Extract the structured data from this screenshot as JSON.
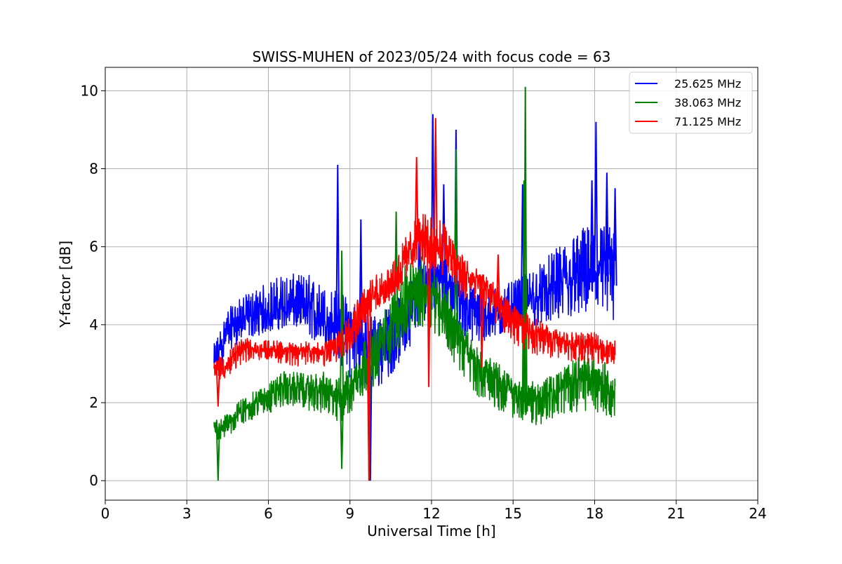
{
  "chart_data": {
    "type": "line",
    "title": "SWISS-MUHEN of 2023/05/24 with focus code = 63",
    "xlabel": "Universal Time [h]",
    "ylabel": "Y-factor [dB]",
    "xlim": [
      0,
      24
    ],
    "ylim": [
      -0.5,
      10.6
    ],
    "xticks": [
      0,
      3,
      6,
      9,
      12,
      15,
      18,
      21,
      24
    ],
    "yticks": [
      0,
      2,
      4,
      6,
      8,
      10
    ],
    "grid": true,
    "legend_position": "top-right",
    "series": [
      {
        "name": "25.625 MHz",
        "color": "#0000ff",
        "x": [
          4.0,
          4.5,
          5.0,
          5.5,
          6.0,
          6.5,
          7.0,
          7.5,
          8.0,
          8.5,
          9.0,
          9.5,
          10.0,
          10.5,
          11.0,
          11.5,
          12.0,
          12.5,
          13.0,
          13.5,
          14.0,
          14.5,
          15.0,
          15.5,
          16.0,
          16.5,
          17.0,
          17.5,
          18.0,
          18.5,
          18.75
        ],
        "y": [
          2.8,
          3.8,
          4.0,
          4.1,
          4.2,
          4.3,
          4.3,
          4.2,
          4.0,
          3.8,
          3.6,
          3.3,
          3.2,
          3.4,
          3.9,
          4.5,
          5.2,
          5.0,
          4.6,
          4.2,
          4.0,
          4.2,
          4.3,
          4.4,
          4.6,
          4.7,
          4.8,
          5.0,
          5.1,
          5.1,
          5.0
        ],
        "lo": [
          2.4,
          3.3,
          3.6,
          3.7,
          3.8,
          3.9,
          3.9,
          3.7,
          3.4,
          3.1,
          2.6,
          2.3,
          2.3,
          2.7,
          3.2,
          3.8,
          4.4,
          4.2,
          3.8,
          3.5,
          3.5,
          3.7,
          3.8,
          3.9,
          4.0,
          4.0,
          4.1,
          4.2,
          4.1,
          4.0,
          3.9
        ],
        "hi": [
          3.5,
          4.4,
          4.7,
          4.9,
          5.1,
          5.3,
          5.3,
          5.3,
          5.0,
          4.9,
          4.7,
          4.4,
          4.3,
          4.5,
          4.9,
          5.5,
          6.2,
          5.9,
          5.4,
          5.0,
          4.8,
          5.0,
          5.1,
          5.3,
          5.6,
          5.9,
          6.2,
          6.5,
          6.6,
          6.6,
          6.3
        ],
        "spikes": [
          [
            8.55,
            8.1
          ],
          [
            9.4,
            6.7
          ],
          [
            11.55,
            6.6
          ],
          [
            12.05,
            9.4
          ],
          [
            12.45,
            7.6
          ],
          [
            12.9,
            9.0
          ],
          [
            15.35,
            7.6
          ],
          [
            17.9,
            7.7
          ],
          [
            18.05,
            9.2
          ],
          [
            18.45,
            7.9
          ],
          [
            18.75,
            7.5
          ],
          [
            9.75,
            0.0
          ]
        ]
      },
      {
        "name": "38.063 MHz",
        "color": "#008000",
        "x": [
          4.0,
          4.5,
          5.0,
          5.5,
          6.0,
          6.5,
          7.0,
          7.5,
          8.0,
          8.5,
          9.0,
          9.5,
          10.0,
          10.5,
          11.0,
          11.5,
          12.0,
          12.5,
          13.0,
          13.5,
          14.0,
          14.5,
          15.0,
          15.5,
          16.0,
          16.5,
          17.0,
          17.5,
          18.0,
          18.5,
          18.75
        ],
        "y": [
          1.3,
          1.4,
          1.7,
          1.9,
          2.1,
          2.3,
          2.3,
          2.2,
          2.2,
          2.0,
          2.2,
          2.8,
          3.2,
          3.8,
          4.4,
          4.7,
          4.7,
          4.2,
          3.5,
          3.0,
          2.6,
          2.4,
          2.1,
          2.0,
          2.0,
          2.1,
          2.4,
          2.5,
          2.5,
          2.3,
          2.0
        ],
        "lo": [
          1.0,
          1.1,
          1.4,
          1.6,
          1.7,
          1.9,
          1.9,
          1.8,
          1.7,
          1.4,
          1.6,
          2.1,
          2.5,
          3.0,
          3.6,
          3.9,
          3.9,
          3.4,
          2.8,
          2.3,
          2.0,
          1.8,
          1.6,
          1.5,
          1.4,
          1.5,
          1.7,
          1.8,
          1.8,
          1.6,
          1.6
        ],
        "hi": [
          1.6,
          1.7,
          2.1,
          2.3,
          2.5,
          2.8,
          2.8,
          2.7,
          2.8,
          2.6,
          2.9,
          3.6,
          4.0,
          4.7,
          5.5,
          5.8,
          5.6,
          5.1,
          4.2,
          3.6,
          3.2,
          3.0,
          2.6,
          2.5,
          2.6,
          2.7,
          3.0,
          3.2,
          3.2,
          3.0,
          2.6
        ],
        "spikes": [
          [
            4.15,
            0.0
          ],
          [
            8.7,
            5.9
          ],
          [
            8.7,
            0.3
          ],
          [
            10.7,
            6.9
          ],
          [
            12.9,
            8.5
          ],
          [
            15.45,
            10.1
          ],
          [
            15.4,
            7.7
          ],
          [
            9.7,
            0.0
          ]
        ]
      },
      {
        "name": "71.125 MHz",
        "color": "#ff0000",
        "x": [
          4.0,
          4.5,
          5.0,
          5.5,
          6.0,
          6.5,
          7.0,
          7.5,
          8.0,
          8.5,
          9.0,
          9.5,
          10.0,
          10.5,
          11.0,
          11.5,
          12.0,
          12.5,
          13.0,
          13.5,
          14.0,
          14.5,
          15.0,
          15.5,
          16.0,
          16.5,
          17.0,
          17.5,
          18.0,
          18.5,
          18.75
        ],
        "y": [
          2.8,
          2.9,
          3.3,
          3.3,
          3.3,
          3.3,
          3.2,
          3.3,
          3.2,
          3.3,
          3.8,
          4.4,
          4.7,
          5.0,
          5.5,
          6.2,
          5.9,
          5.8,
          5.3,
          5.0,
          4.9,
          4.4,
          4.0,
          3.8,
          3.7,
          3.5,
          3.4,
          3.4,
          3.4,
          3.3,
          3.3
        ],
        "lo": [
          2.6,
          2.6,
          3.0,
          3.1,
          3.1,
          3.0,
          2.9,
          3.0,
          2.9,
          3.0,
          3.3,
          3.9,
          4.3,
          4.6,
          5.0,
          5.7,
          5.3,
          5.2,
          4.7,
          4.5,
          4.4,
          3.9,
          3.5,
          3.3,
          3.2,
          3.1,
          3.1,
          3.0,
          3.0,
          3.0,
          3.0
        ],
        "hi": [
          3.1,
          3.3,
          3.7,
          3.6,
          3.6,
          3.6,
          3.5,
          3.6,
          3.5,
          3.8,
          4.4,
          5.0,
          5.3,
          5.5,
          6.2,
          6.8,
          6.9,
          6.6,
          6.0,
          5.5,
          5.3,
          4.9,
          4.5,
          4.3,
          4.1,
          3.9,
          3.8,
          3.8,
          3.8,
          3.6,
          3.6
        ],
        "spikes": [
          [
            4.15,
            1.9
          ],
          [
            11.45,
            8.3
          ],
          [
            11.9,
            2.4
          ],
          [
            12.15,
            9.3
          ],
          [
            13.85,
            2.9
          ],
          [
            14.45,
            5.8
          ],
          [
            9.7,
            0.0
          ]
        ]
      }
    ]
  }
}
